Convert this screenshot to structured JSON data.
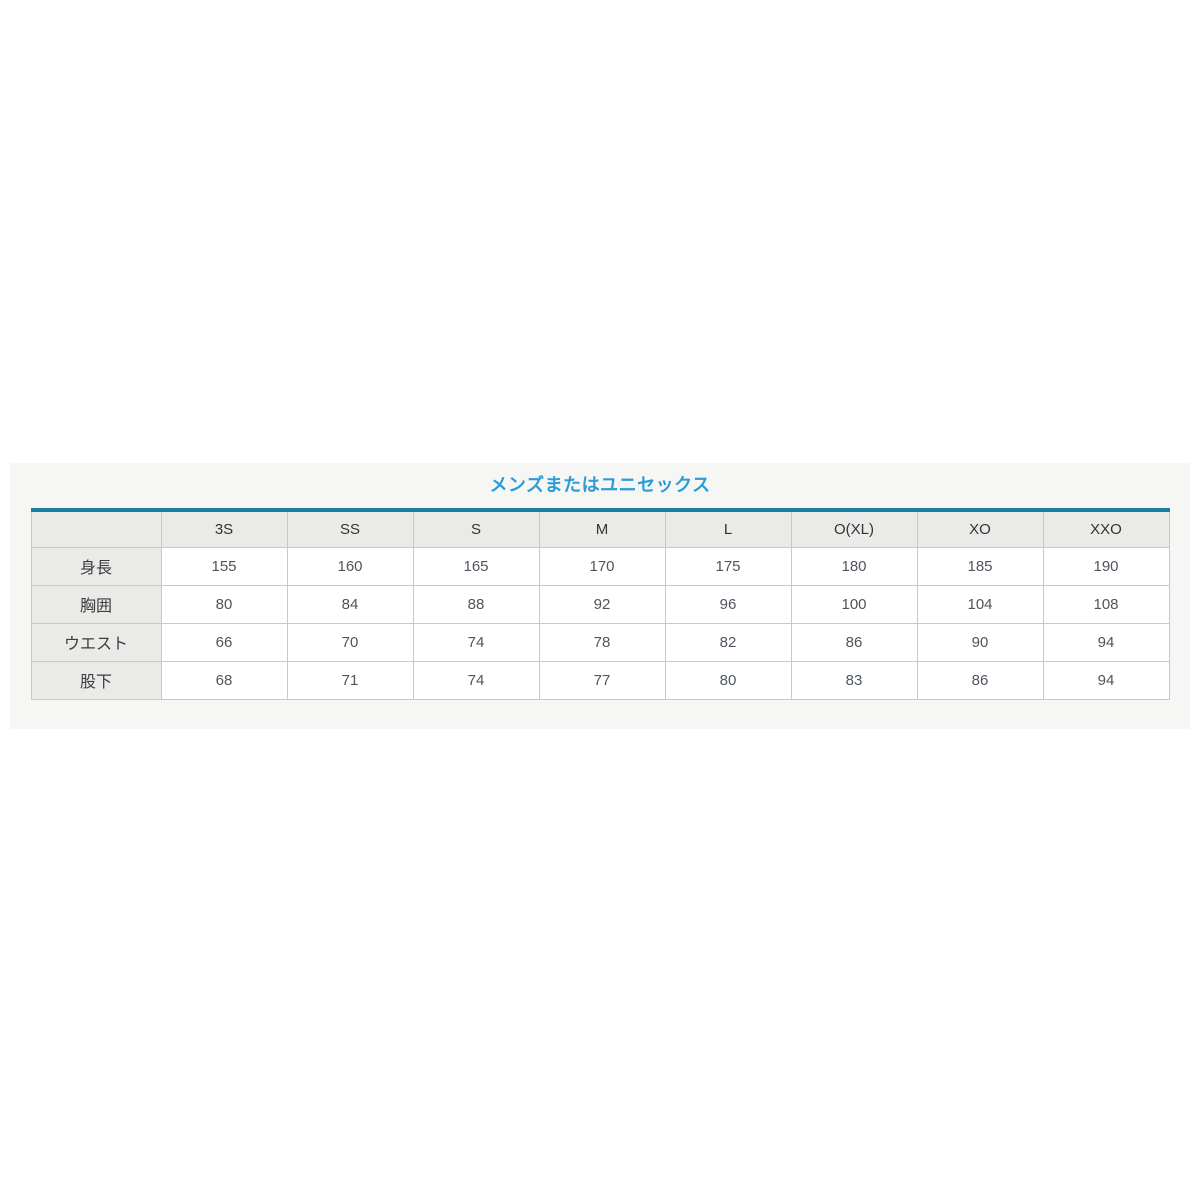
{
  "page": {
    "background": "#ffffff"
  },
  "panel": {
    "background": "#f6f6f4"
  },
  "size_chart": {
    "title": "メンズまたはユニセックス",
    "colors": {
      "title_blue": "#2b9cd8",
      "table_top_border_teal": "#1b80a0",
      "header_cell_bg": "#eaeae8",
      "cell_border": "#c9c9c9",
      "header_text": "#333333",
      "label_text": "#3c3c3c",
      "value_text": "#4e555c"
    }
  },
  "chart_data": {
    "type": "table",
    "title": "メンズまたはユニセックス",
    "columns": [
      "3S",
      "SS",
      "S",
      "M",
      "L",
      "O(XL)",
      "XO",
      "XXO"
    ],
    "rows": [
      {
        "label": "身長",
        "values": [
          155,
          160,
          165,
          170,
          175,
          180,
          185,
          190
        ]
      },
      {
        "label": "胸囲",
        "values": [
          80,
          84,
          88,
          92,
          96,
          100,
          104,
          108
        ]
      },
      {
        "label": "ウエスト",
        "values": [
          66,
          70,
          74,
          78,
          82,
          86,
          90,
          94
        ]
      },
      {
        "label": "股下",
        "values": [
          68,
          71,
          74,
          77,
          80,
          83,
          86,
          94
        ]
      }
    ]
  }
}
